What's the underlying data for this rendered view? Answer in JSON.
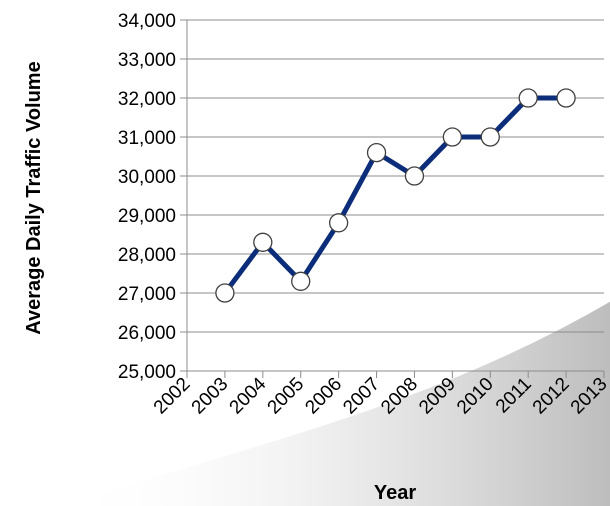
{
  "chart_data": {
    "type": "line",
    "title": "",
    "xlabel": "Year",
    "ylabel": "Average Daily Traffic Volume",
    "x_ticks": [
      "2002",
      "2003",
      "2004",
      "2005",
      "2006",
      "2007",
      "2008",
      "2009",
      "2010",
      "2011",
      "2012",
      "2013"
    ],
    "xlim": [
      2002,
      2013
    ],
    "ylim": [
      25000,
      34000
    ],
    "y_ticks": [
      "25,000",
      "26,000",
      "27,000",
      "28,000",
      "29,000",
      "30,000",
      "31,000",
      "32,000",
      "33,000",
      "34,000"
    ],
    "grid": "horizontal",
    "legend": "none",
    "series": [
      {
        "x": [
          2003,
          2004,
          2005,
          2006,
          2007,
          2008,
          2009,
          2010,
          2011,
          2012
        ],
        "y": [
          27000,
          28300,
          27300,
          28800,
          30600,
          30000,
          31000,
          31000,
          32000,
          32000
        ],
        "color": "#0b2d7a",
        "marker_fill": "#ffffff"
      }
    ]
  }
}
